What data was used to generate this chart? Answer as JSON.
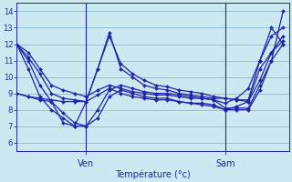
{
  "background_color": "#cce8f0",
  "plot_bg_color": "#cce8f0",
  "line_color": "#2222aa",
  "grid_color": "#88bbd0",
  "xlabel": "Température (°c)",
  "ylim": [
    5.5,
    14.5
  ],
  "xlim": [
    0,
    47
  ],
  "yticks": [
    6,
    7,
    8,
    9,
    10,
    11,
    12,
    13,
    14
  ],
  "ven_x": 12,
  "sam_x": 36,
  "series": [
    {
      "x": [
        0,
        2,
        4,
        6,
        8,
        10,
        12,
        14,
        16,
        18,
        20,
        22,
        24,
        26,
        28,
        30,
        32,
        34,
        36,
        38,
        40,
        42,
        44,
        46
      ],
      "y": [
        12,
        11.5,
        10.5,
        9.5,
        9.2,
        9.0,
        8.8,
        9.2,
        9.5,
        9.3,
        9.1,
        9.0,
        8.9,
        8.9,
        8.8,
        8.7,
        8.7,
        8.6,
        8.4,
        8.7,
        9.3,
        11.0,
        12.5,
        13.0
      ]
    },
    {
      "x": [
        0,
        2,
        4,
        6,
        8,
        10,
        12,
        14,
        16,
        18,
        20,
        22,
        24,
        26,
        28,
        30,
        32,
        34,
        36,
        38,
        40,
        42,
        44,
        46
      ],
      "y": [
        12,
        11.2,
        10.2,
        9.0,
        8.7,
        8.6,
        8.5,
        8.9,
        9.3,
        9.0,
        8.8,
        8.7,
        8.6,
        8.6,
        8.5,
        8.4,
        8.4,
        8.3,
        8.0,
        8.2,
        8.5,
        9.8,
        11.5,
        12.2
      ]
    },
    {
      "x": [
        0,
        2,
        4,
        6,
        8,
        10,
        12,
        14,
        16,
        18,
        20,
        22,
        24,
        26,
        28,
        30,
        32,
        34,
        36,
        38,
        40,
        42,
        44,
        46
      ],
      "y": [
        12,
        11.0,
        9.5,
        8.5,
        7.8,
        7.2,
        7.0,
        8.0,
        9.2,
        9.5,
        9.3,
        9.1,
        9.0,
        9.0,
        8.9,
        8.8,
        8.7,
        8.6,
        8.1,
        8.1,
        8.1,
        9.5,
        11.0,
        12.0
      ]
    },
    {
      "x": [
        0,
        2,
        4,
        6,
        8,
        10,
        12,
        14,
        16,
        18,
        20,
        22,
        24,
        26,
        28,
        30,
        32,
        34,
        36,
        38,
        40,
        42,
        44,
        46
      ],
      "y": [
        12,
        10.5,
        8.8,
        8.0,
        7.5,
        7.0,
        7.0,
        7.5,
        8.8,
        9.2,
        9.0,
        8.8,
        8.7,
        8.7,
        8.5,
        8.4,
        8.3,
        8.2,
        8.0,
        8.0,
        8.0,
        9.2,
        11.0,
        14.0
      ]
    },
    {
      "x": [
        0,
        2,
        4,
        6,
        8,
        10,
        12,
        14,
        16,
        18,
        20,
        22,
        24,
        26,
        28,
        30,
        32,
        34,
        36,
        38,
        40,
        42,
        44,
        46
      ],
      "y": [
        9,
        8.8,
        8.7,
        8.6,
        8.5,
        8.5,
        8.5,
        10.5,
        12.5,
        10.8,
        10.2,
        9.8,
        9.5,
        9.4,
        9.2,
        9.1,
        9.0,
        8.8,
        8.7,
        8.6,
        8.6,
        11.0,
        13.0,
        12.0
      ]
    },
    {
      "x": [
        0,
        2,
        4,
        6,
        8,
        10,
        12,
        14,
        16,
        18,
        20,
        22,
        24,
        26,
        28,
        30,
        32,
        34,
        36,
        38,
        40,
        42,
        44,
        46
      ],
      "y": [
        9,
        8.8,
        8.6,
        8.5,
        7.2,
        7.0,
        8.5,
        10.5,
        12.7,
        10.5,
        10.0,
        9.5,
        9.3,
        9.2,
        9.0,
        8.9,
        8.8,
        8.7,
        8.7,
        8.6,
        8.5,
        10.5,
        11.5,
        12.5
      ]
    }
  ]
}
